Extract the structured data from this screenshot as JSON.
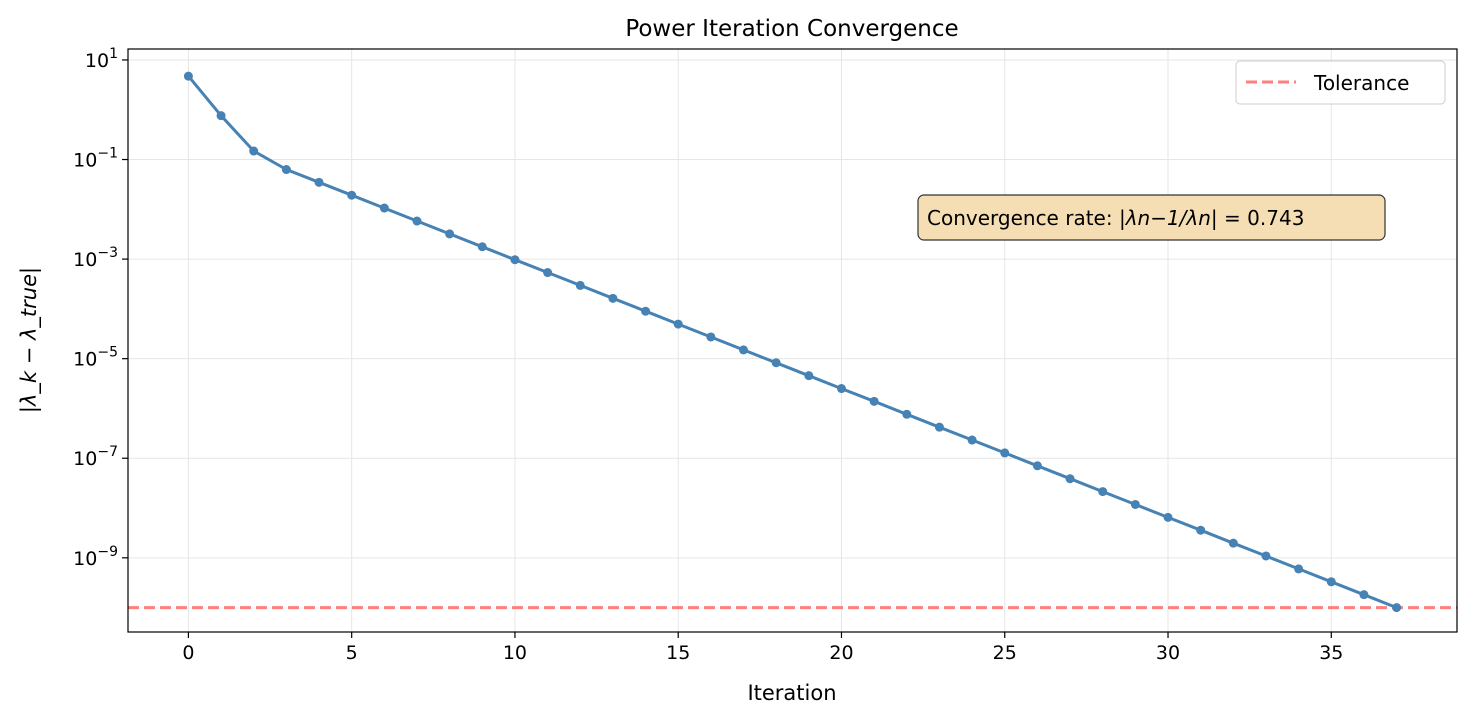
{
  "chart_data": {
    "type": "line",
    "title": "Power Iteration Convergence",
    "xlabel": "Iteration",
    "ylabel": "|λ_k − λ_true|",
    "yscale": "log",
    "xlim": [
      -1.85,
      38.85
    ],
    "ylim_log10": [
      -10.49,
      1.22
    ],
    "grid": true,
    "legend_position": "top-right",
    "x_ticks": [
      0,
      5,
      10,
      15,
      20,
      25,
      30,
      35
    ],
    "y_ticks": [
      {
        "exp": 1,
        "label_base": "10",
        "label_exp": "1"
      },
      {
        "exp": -1,
        "label_base": "10",
        "label_exp": "−1"
      },
      {
        "exp": -3,
        "label_base": "10",
        "label_exp": "−3"
      },
      {
        "exp": -5,
        "label_base": "10",
        "label_exp": "−5"
      },
      {
        "exp": -7,
        "label_base": "10",
        "label_exp": "−7"
      },
      {
        "exp": -9,
        "label_base": "10",
        "label_exp": "−9"
      }
    ],
    "series": [
      {
        "color": "#4682b4",
        "marker": "circle",
        "x": [
          0,
          1,
          2,
          3,
          4,
          5,
          6,
          7,
          8,
          9,
          10,
          11,
          12,
          13,
          14,
          15,
          16,
          17,
          18,
          19,
          20,
          21,
          22,
          23,
          24,
          25,
          26,
          27,
          28,
          29,
          30,
          31,
          32,
          33,
          34,
          35,
          36,
          37
        ],
        "y": [
          4.73,
          0.76,
          0.148,
          0.063,
          0.0348,
          0.0192,
          0.0106,
          0.00582,
          0.00321,
          0.00177,
          0.000973,
          0.000537,
          0.000296,
          0.000163,
          8.98e-05,
          4.95e-05,
          2.73e-05,
          1.5e-05,
          8.28e-06,
          4.56e-06,
          2.51e-06,
          1.39e-06,
          7.64e-07,
          4.21e-07,
          2.32e-07,
          1.28e-07,
          7.05e-08,
          3.88e-08,
          2.14e-08,
          1.18e-08,
          6.49e-09,
          3.58e-09,
          1.97e-09,
          1.09e-09,
          5.98e-10,
          3.3e-10,
          1.82e-10,
          1e-10
        ]
      }
    ],
    "reference_lines": [
      {
        "name": "Tolerance",
        "y": 1e-10,
        "color": "#ff7f7f",
        "style": "dashed"
      }
    ],
    "annotation": {
      "prefix": "Convergence rate: ",
      "formula": "|λn−1/λn|",
      "value": "= 0.743",
      "background": "#f5deb3"
    }
  }
}
